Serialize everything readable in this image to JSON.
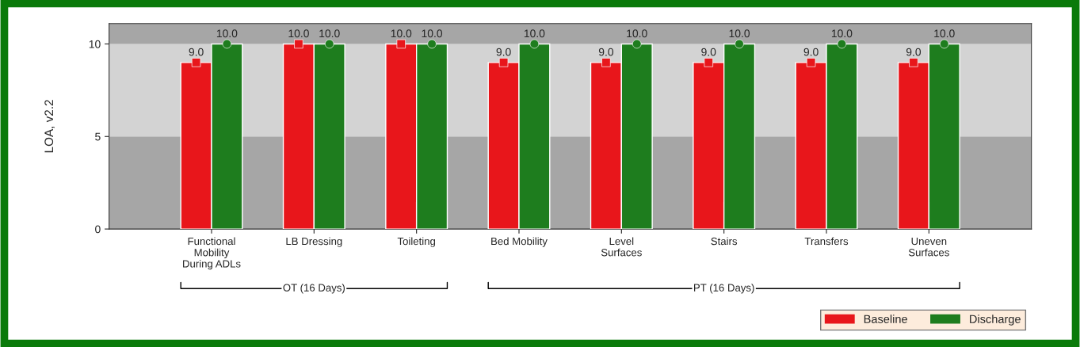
{
  "chart_data": {
    "type": "bar",
    "ylabel": "LOA, v2.2",
    "categories": [
      "Functional\nMobility\nDuring ADLs",
      "LB Dressing",
      "Toileting",
      "Bed Mobility",
      "Level\nSurfaces",
      "Stairs",
      "Transfers",
      "Uneven\nSurfaces"
    ],
    "series": [
      {
        "name": "Baseline",
        "color": "#e8161b",
        "values": [
          9.0,
          10.0,
          10.0,
          9.0,
          9.0,
          9.0,
          9.0,
          9.0
        ],
        "value_labels": [
          "9.0",
          "10.0",
          "10.0",
          "9.0",
          "9.0",
          "9.0",
          "9.0",
          "9.0"
        ]
      },
      {
        "name": "Discharge",
        "color": "#1e7d1e",
        "values": [
          10.0,
          10.0,
          10.0,
          10.0,
          10.0,
          10.0,
          10.0,
          10.0
        ],
        "value_labels": [
          "10.0",
          "10.0",
          "10.0",
          "10.0",
          "10.0",
          "10.0",
          "10.0",
          "10.0"
        ]
      },
      {
        "type": "scatter",
        "color": "#e8161b",
        "marker": "square",
        "x": [
          "Functional\nMobility\nDuring ADLs",
          "LB Dressing",
          "Toileting",
          "Bed Mobility",
          "Level\nSurfaces",
          "Stairs",
          "Transfers",
          "Uneven\nSurfaces"
        ],
        "values": [
          9.0,
          10.0,
          10.0,
          9.0,
          9.0,
          9.0,
          9.0,
          9.0
        ]
      },
      {
        "type": "scatter",
        "color": "#1e7d1e",
        "marker": "circle",
        "x": [
          "Functional\nMobility\nDuring ADLs",
          "LB Dressing",
          "Toileting",
          "Bed Mobility",
          "Level\nSurfaces",
          "Stairs",
          "Transfers",
          "Uneven\nSurfaces"
        ],
        "values": [
          10.0,
          10.0,
          10.0,
          10.0,
          10.0,
          10.0,
          10.0,
          10.0
        ]
      }
    ],
    "ylim": [
      0,
      11.1
    ],
    "yticks": [
      0,
      5,
      10
    ],
    "bands": [
      {
        "axis": "y",
        "from": 0,
        "to": 5,
        "color": "#a6a6a6"
      },
      {
        "axis": "y",
        "from": 5,
        "to": 10,
        "color": "#d3d3d3"
      },
      {
        "axis": "y",
        "from": 10,
        "to": 11.1,
        "color": "#a6a6a6"
      }
    ],
    "annotations": [
      "OT (16 Days)",
      "PT (16 Days)"
    ],
    "legend": "bottom right",
    "grid": false
  }
}
